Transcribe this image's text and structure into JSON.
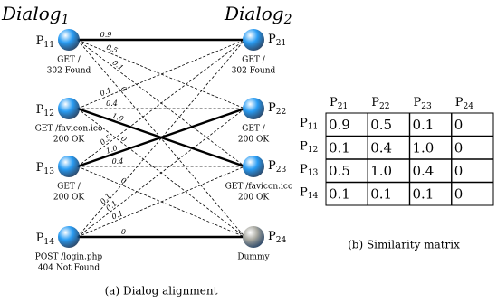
{
  "left_title": {
    "text": "Dialog",
    "sub": "1"
  },
  "right_title": {
    "text": "Dialog",
    "sub": "2"
  },
  "left_nodes": [
    {
      "label": "P",
      "sub": "11",
      "lines": [
        "GET /",
        "302 Found"
      ],
      "color": "#2a9df4"
    },
    {
      "label": "P",
      "sub": "12",
      "lines": [
        "GET /favicon.ico",
        "200 OK"
      ],
      "color": "#2a9df4"
    },
    {
      "label": "P",
      "sub": "13",
      "lines": [
        "GET /",
        "200 OK"
      ],
      "color": "#2a9df4"
    },
    {
      "label": "P",
      "sub": "14",
      "lines": [
        "POST /login.php",
        "404 Not Found"
      ],
      "color": "#2a9df4"
    }
  ],
  "right_nodes": [
    {
      "label": "P",
      "sub": "21",
      "lines": [
        "GET /",
        "302 Found"
      ],
      "color": "#2a9df4"
    },
    {
      "label": "P",
      "sub": "22",
      "lines": [
        "GET /",
        "200 OK"
      ],
      "color": "#2a9df4"
    },
    {
      "label": "P",
      "sub": "23",
      "lines": [
        "GET /favicon.ico",
        "200 OK"
      ],
      "color": "#2a9df4"
    },
    {
      "label": "P",
      "sub": "24",
      "lines": [
        "Dummy"
      ],
      "color": "#a8a8a0"
    }
  ],
  "edges": [
    {
      "from": 0,
      "to": 0,
      "weight": "0.9",
      "bold": true
    },
    {
      "from": 0,
      "to": 1,
      "weight": "0.5",
      "bold": false
    },
    {
      "from": 0,
      "to": 2,
      "weight": "0.1",
      "bold": false
    },
    {
      "from": 0,
      "to": 3,
      "weight": "0",
      "bold": false
    },
    {
      "from": 1,
      "to": 0,
      "weight": "0.1",
      "bold": false
    },
    {
      "from": 1,
      "to": 1,
      "weight": "0.4",
      "bold": false
    },
    {
      "from": 1,
      "to": 2,
      "weight": "1.0",
      "bold": true
    },
    {
      "from": 1,
      "to": 3,
      "weight": "0",
      "bold": false
    },
    {
      "from": 2,
      "to": 0,
      "weight": "0.5",
      "bold": false
    },
    {
      "from": 2,
      "to": 1,
      "weight": "1.0",
      "bold": true
    },
    {
      "from": 2,
      "to": 2,
      "weight": "0.4",
      "bold": false
    },
    {
      "from": 2,
      "to": 3,
      "weight": "0",
      "bold": false
    },
    {
      "from": 3,
      "to": 0,
      "weight": "0.1",
      "bold": false
    },
    {
      "from": 3,
      "to": 1,
      "weight": "0.1",
      "bold": false
    },
    {
      "from": 3,
      "to": 2,
      "weight": "0.1",
      "bold": false
    },
    {
      "from": 3,
      "to": 3,
      "weight": "0",
      "bold": true
    }
  ],
  "caption_a": "(a) Dialog alignment",
  "matrix": {
    "columns": [
      {
        "label": "P",
        "sub": "21"
      },
      {
        "label": "P",
        "sub": "22"
      },
      {
        "label": "P",
        "sub": "23"
      },
      {
        "label": "P",
        "sub": "24"
      }
    ],
    "rows": [
      {
        "label": "P",
        "sub": "11",
        "values": [
          "0.9",
          "0.5",
          "0.1",
          "0"
        ]
      },
      {
        "label": "P",
        "sub": "12",
        "values": [
          "0.1",
          "0.4",
          "1.0",
          "0"
        ]
      },
      {
        "label": "P",
        "sub": "13",
        "values": [
          "0.5",
          "1.0",
          "0.4",
          "0"
        ]
      },
      {
        "label": "P",
        "sub": "14",
        "values": [
          "0.1",
          "0.1",
          "0.1",
          "0"
        ]
      }
    ]
  },
  "caption_b": "(b) Similarity matrix"
}
